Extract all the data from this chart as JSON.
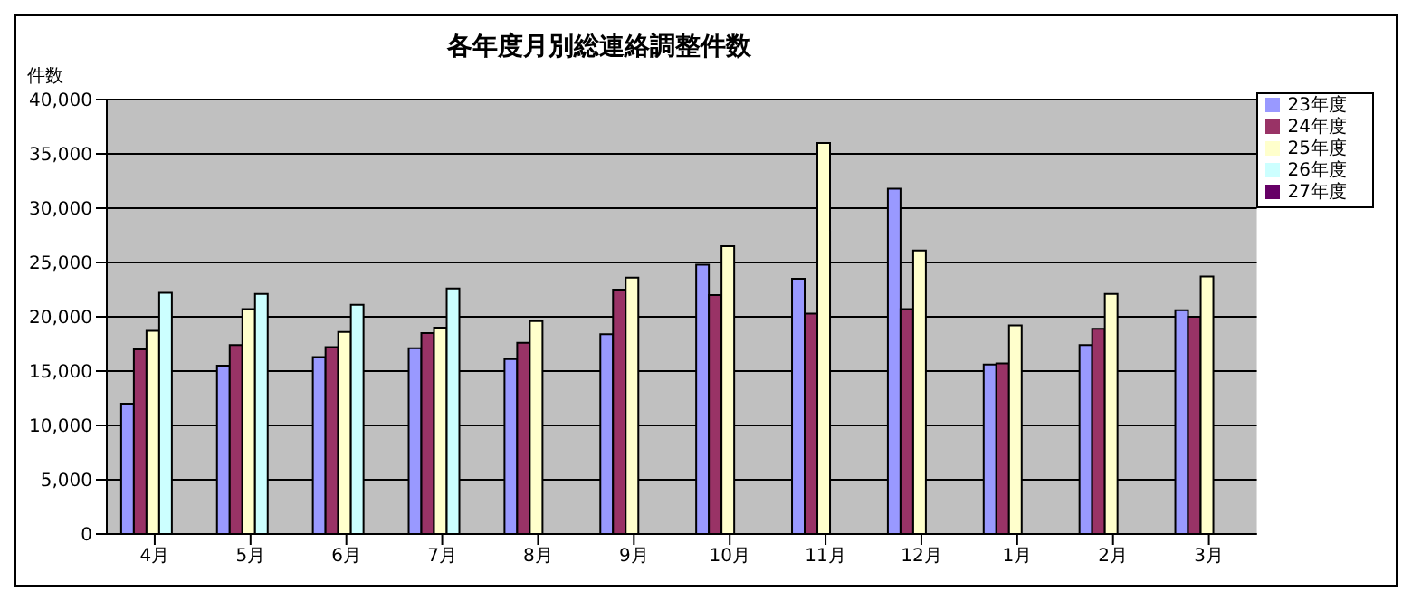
{
  "chart_data": {
    "type": "bar",
    "title": "各年度月別総連絡調整件数",
    "ylabel": "件数",
    "categories": [
      "4月",
      "5月",
      "6月",
      "7月",
      "8月",
      "9月",
      "10月",
      "11月",
      "12月",
      "1月",
      "2月",
      "3月"
    ],
    "series": [
      {
        "name": "23年度",
        "color": "#9999ff",
        "values": [
          12000,
          15500,
          16300,
          17100,
          16100,
          18400,
          24800,
          23500,
          31800,
          15600,
          17400,
          20600
        ]
      },
      {
        "name": "24年度",
        "color": "#993366",
        "values": [
          17000,
          17400,
          17200,
          18500,
          17600,
          22500,
          22000,
          20300,
          20700,
          15700,
          18900,
          20000
        ]
      },
      {
        "name": "25年度",
        "color": "#ffffcc",
        "values": [
          18700,
          20700,
          18600,
          19000,
          19600,
          23600,
          26500,
          36000,
          26100,
          19200,
          22100,
          23700
        ]
      },
      {
        "name": "26年度",
        "color": "#ccffff",
        "values": [
          22200,
          22100,
          21100,
          22600,
          null,
          null,
          null,
          null,
          null,
          null,
          null,
          null
        ]
      },
      {
        "name": "27年度",
        "color": "#660066",
        "values": [
          null,
          null,
          null,
          null,
          null,
          null,
          null,
          null,
          null,
          null,
          null,
          null
        ]
      }
    ],
    "ylim": [
      0,
      40000
    ],
    "yticks": [
      0,
      {
        "value": 5000,
        "label": "5,000"
      },
      {
        "value": 10000,
        "label": "10,000"
      },
      {
        "value": 15000,
        "label": "15,000"
      },
      {
        "value": 20000,
        "label": "20,000"
      },
      {
        "value": 25000,
        "label": "25,000"
      },
      {
        "value": 30000,
        "label": "30,000"
      },
      {
        "value": 35000,
        "label": "35,000"
      },
      {
        "value": 40000,
        "label": "40,000"
      }
    ],
    "grid": "y",
    "legend": "top right"
  }
}
